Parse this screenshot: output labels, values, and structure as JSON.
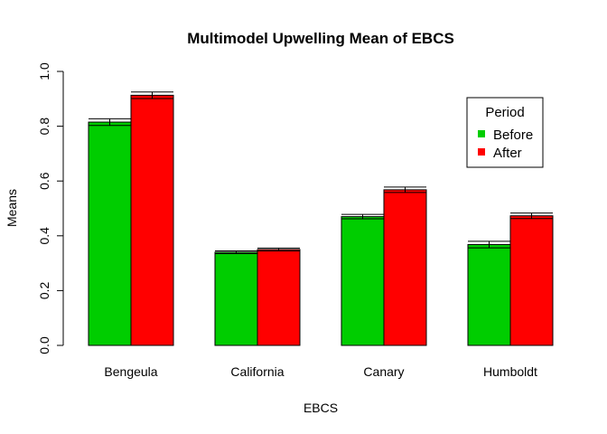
{
  "chart_data": {
    "type": "bar",
    "title": "Multimodel Upwelling Mean of EBCS",
    "xlabel": "EBCS",
    "ylabel": "Means",
    "categories": [
      "Bengeula",
      "California",
      "Canary",
      "Humboldt"
    ],
    "series": [
      {
        "name": "Before",
        "color": "#00CD00",
        "values": [
          0.815,
          0.34,
          0.47,
          0.368
        ],
        "error": [
          0.012,
          0.005,
          0.008,
          0.012
        ]
      },
      {
        "name": "After",
        "color": "#FF0000",
        "values": [
          0.913,
          0.35,
          0.568,
          0.473
        ],
        "error": [
          0.012,
          0.005,
          0.01,
          0.01
        ]
      }
    ],
    "ylim": [
      0,
      1
    ],
    "yticks": [
      "0.0",
      "0.2",
      "0.4",
      "0.6",
      "0.8",
      "1.0"
    ],
    "legend": {
      "title": "Period",
      "position": "top-right"
    },
    "grid": false
  }
}
